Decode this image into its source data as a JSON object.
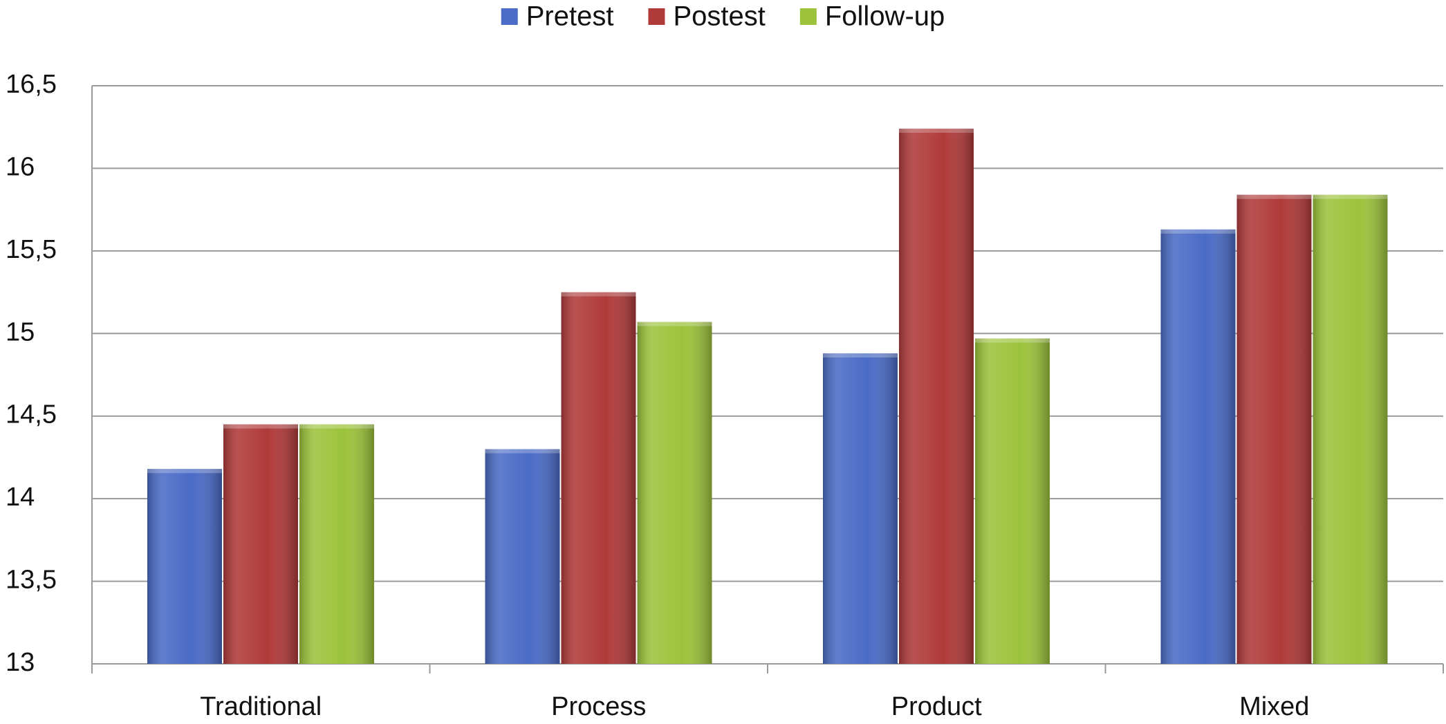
{
  "chart_data": {
    "type": "bar",
    "categories": [
      "Traditional",
      "Process",
      "Product",
      "Mixed"
    ],
    "series": [
      {
        "name": "Pretest",
        "color": "#4a6bc6",
        "values": [
          14.18,
          14.3,
          14.88,
          15.63
        ]
      },
      {
        "name": "Postest",
        "color": "#b03a3a",
        "values": [
          14.45,
          15.25,
          16.24,
          15.84
        ]
      },
      {
        "name": "Follow-up",
        "color": "#9cc33b",
        "values": [
          14.45,
          15.07,
          14.97,
          15.84
        ]
      }
    ],
    "ylim": [
      13,
      16.5
    ],
    "yticks": [
      13,
      {
        "value": 13.5,
        "label": "13,5"
      },
      14,
      {
        "value": 14.5,
        "label": "14,5"
      },
      15,
      {
        "value": 15.5,
        "label": "15,5"
      },
      16,
      {
        "value": 16.5,
        "label": "16,5"
      }
    ],
    "grid": true,
    "legend": "top"
  }
}
